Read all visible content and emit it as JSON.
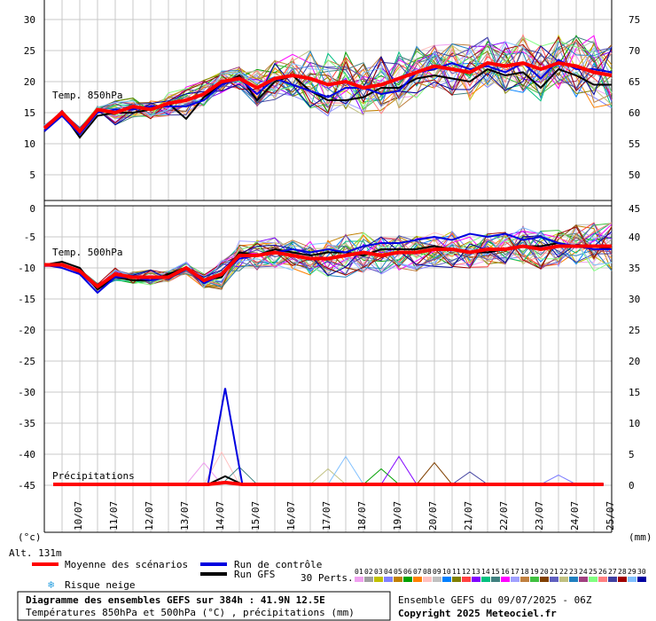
{
  "chart_data": {
    "type": "line",
    "temp_axis_left_ticks": [
      "30",
      "25",
      "20",
      "15",
      "10",
      "5",
      "0",
      "-5",
      "-10",
      "-15",
      "-20",
      "-25",
      "-30",
      "-35",
      "-40",
      "-45"
    ],
    "temp_axis_right_ticks": [
      "75",
      "70",
      "65",
      "60",
      "55",
      "50",
      "45",
      "40",
      "35",
      "30",
      "25",
      "20",
      "15",
      "10",
      "5",
      "0"
    ],
    "unit_left": "(°c)",
    "unit_right": "(mm)",
    "dates": [
      "10/07",
      "11/07",
      "12/07",
      "13/07",
      "14/07",
      "15/07",
      "16/07",
      "17/07",
      "18/07",
      "19/07",
      "20/07",
      "21/07",
      "22/07",
      "23/07",
      "24/07",
      "25/07"
    ],
    "panel_850": {
      "label": "Temp. 850hPa",
      "mean": [
        12.5,
        15,
        12,
        15.5,
        15,
        16,
        15.5,
        16.5,
        17,
        18,
        20,
        20.5,
        19,
        20.5,
        21,
        20.5,
        19.5,
        20,
        19,
        19.5,
        20.5,
        21.5,
        22.5,
        22,
        21.5,
        23,
        22.5,
        23,
        22,
        23,
        22.5,
        21.5,
        21
      ],
      "control": [
        12,
        14.5,
        11.5,
        15,
        15.5,
        15.5,
        16,
        16,
        16,
        17,
        19.5,
        20.5,
        18,
        20.5,
        19.5,
        18.5,
        17.5,
        19,
        19,
        18,
        18.5,
        21.5,
        22,
        23,
        22,
        22.5,
        21.5,
        23,
        20.5,
        23.5,
        22,
        22,
        21.5
      ],
      "gfs": [
        12,
        15,
        11,
        14.5,
        15,
        15,
        15.5,
        16.5,
        14,
        17.5,
        19.5,
        21,
        17,
        20,
        21,
        18.5,
        17,
        17,
        17.5,
        19,
        19,
        20.5,
        21,
        20.5,
        20,
        22,
        21,
        21.5,
        19,
        22,
        21,
        19.5,
        19.5
      ],
      "ensemble_spread_low": [
        11,
        13.5,
        10,
        13.5,
        13,
        14,
        14.5,
        14.5,
        14,
        15.5,
        18,
        19,
        16,
        16,
        16.5,
        14,
        13,
        14,
        14.5,
        15,
        15,
        17,
        18,
        17.5,
        17,
        18,
        17,
        18,
        16,
        17,
        16.5,
        13,
        14
      ],
      "ensemble_spread_high": [
        14,
        16,
        13.5,
        16.5,
        17,
        17.5,
        17.5,
        18.5,
        19,
        20,
        21.5,
        23,
        22,
        23,
        23.5,
        23.5,
        23.5,
        24,
        23.5,
        24.5,
        24.5,
        25.5,
        25.5,
        26,
        26,
        27,
        26,
        27.5,
        26.5,
        26,
        26.5,
        25,
        24.5
      ]
    },
    "panel_500": {
      "label": "Temp. 500hPa",
      "mean": [
        -9.5,
        -9.5,
        -10.5,
        -13,
        -11,
        -11.5,
        -11.5,
        -11.5,
        -10,
        -12,
        -11,
        -8,
        -8,
        -7.5,
        -8,
        -8.5,
        -8.5,
        -8,
        -7.5,
        -8,
        -7.5,
        -7.5,
        -7,
        -7,
        -7.5,
        -7,
        -7,
        -6.5,
        -7,
        -6.5,
        -6.5,
        -6.5,
        -6.5
      ],
      "control": [
        -9.5,
        -10,
        -11,
        -14,
        -11.5,
        -11.5,
        -12,
        -11.5,
        -10,
        -12.5,
        -11,
        -8.5,
        -8,
        -7.5,
        -7,
        -7.5,
        -7,
        -7.5,
        -6.5,
        -6,
        -6,
        -5.5,
        -5,
        -5.5,
        -4.5,
        -5,
        -4.5,
        -5.5,
        -5,
        -6,
        -6.5,
        -7,
        -7
      ],
      "gfs": [
        -9.5,
        -9,
        -10,
        -13.5,
        -11.5,
        -12,
        -12,
        -11,
        -10,
        -12,
        -11.5,
        -7.5,
        -8,
        -7,
        -7.5,
        -8,
        -7.5,
        -7.5,
        -8,
        -7,
        -7,
        -7,
        -6.5,
        -7,
        -7.5,
        -7.5,
        -7,
        -6.5,
        -6.5,
        -6,
        -6.5,
        -6.5,
        -7
      ],
      "ensemble_spread_low": [
        -10.5,
        -10.5,
        -12,
        -15.5,
        -12.5,
        -12.5,
        -13,
        -12.5,
        -11,
        -13.5,
        -14,
        -11.5,
        -11,
        -10.5,
        -11,
        -11.5,
        -11.5,
        -12,
        -11.5,
        -11,
        -11,
        -11,
        -10.5,
        -10.5,
        -10.5,
        -11,
        -10,
        -10.5,
        -10.5,
        -10,
        -10,
        -10.5,
        -11
      ],
      "ensemble_spread_high": [
        -9,
        -9,
        -10,
        -12.5,
        -10.5,
        -10.5,
        -10.5,
        -10.5,
        -9,
        -11,
        -9,
        -6,
        -6,
        -5.5,
        -6,
        -6,
        -5.5,
        -5,
        -5,
        -5,
        -5,
        -5,
        -5,
        -4.5,
        -5,
        -5,
        -4.5,
        -4,
        -4,
        -3.5,
        -3,
        -2.5,
        -3
      ]
    },
    "panel_precip": {
      "label": "Précipitations",
      "mean": [
        0,
        0,
        0,
        0,
        0,
        0,
        0,
        0,
        0,
        0,
        0.3,
        0,
        0,
        0,
        0,
        0,
        0,
        0,
        0,
        0,
        0,
        0,
        0,
        0,
        0,
        0,
        0,
        0,
        0,
        0,
        0,
        0,
        0
      ],
      "control": [
        0,
        0,
        0,
        0,
        0,
        0,
        0,
        0,
        0,
        0,
        15.5,
        0,
        0,
        0,
        0,
        0,
        0,
        0,
        0,
        0,
        0,
        0,
        0,
        0,
        0,
        0,
        0,
        0,
        0,
        0,
        0,
        0,
        0
      ],
      "gfs": [
        0,
        0,
        0,
        0,
        0,
        0,
        0,
        0,
        0,
        0,
        1.3,
        0,
        0,
        0,
        0,
        0,
        0,
        0,
        0,
        0,
        0,
        0,
        0,
        0,
        0,
        0,
        0,
        0,
        0,
        0,
        0,
        0,
        0
      ],
      "member_peaks": [
        {
          "i": 9,
          "v": 3.5
        },
        {
          "i": 10,
          "v": 5.2
        },
        {
          "i": 11,
          "v": 2.8
        },
        {
          "i": 16,
          "v": 2.5
        },
        {
          "i": 17,
          "v": 4.5
        },
        {
          "i": 19,
          "v": 2.5
        },
        {
          "i": 20,
          "v": 4.5
        },
        {
          "i": 22,
          "v": 3.5
        },
        {
          "i": 24,
          "v": 2
        },
        {
          "i": 29,
          "v": 1.5
        }
      ]
    }
  },
  "altitude": "Alt. 131m",
  "legend": {
    "mean_label": "Moyenne des scénarios",
    "control_label": "Run de contrôle",
    "gfs_label": "Run GFS",
    "snow_label": "Risque neige",
    "perts_label": "30 Perts.",
    "pert_numbers": [
      "01",
      "02",
      "03",
      "04",
      "05",
      "06",
      "07",
      "08",
      "09",
      "10",
      "11",
      "12",
      "13",
      "14",
      "15",
      "16",
      "17",
      "18",
      "19",
      "20",
      "21",
      "22",
      "23",
      "24",
      "25",
      "26",
      "27",
      "28",
      "29",
      "30"
    ],
    "pert_colors": [
      "#f0a0f0",
      "#a0a0a0",
      "#c0c000",
      "#8080ff",
      "#c08000",
      "#00a000",
      "#ff8000",
      "#ffc0c0",
      "#c0c0c0",
      "#0080ff",
      "#808000",
      "#ff4040",
      "#8000ff",
      "#00c080",
      "#408080",
      "#ff00ff",
      "#a0a0ff",
      "#c08040",
      "#40c040",
      "#804000",
      "#6060c0",
      "#c0c080",
      "#2080c0",
      "#a04080",
      "#80ff80",
      "#ff8080",
      "#4040a0",
      "#a00000",
      "#80c0ff",
      "#0000a0"
    ],
    "mean_color": "#ff0000",
    "control_color": "#0000e0",
    "gfs_color": "#000000"
  },
  "footer": {
    "title": "Diagramme des ensembles GEFS sur 384h : 41.9N 12.5E",
    "subtitle": "Températures 850hPa et 500hPa (°C) , précipitations (mm)",
    "ensemble_info": "Ensemble GEFS du 09/07/2025 - 06Z",
    "copyright": "Copyright 2025 Meteociel.fr"
  }
}
